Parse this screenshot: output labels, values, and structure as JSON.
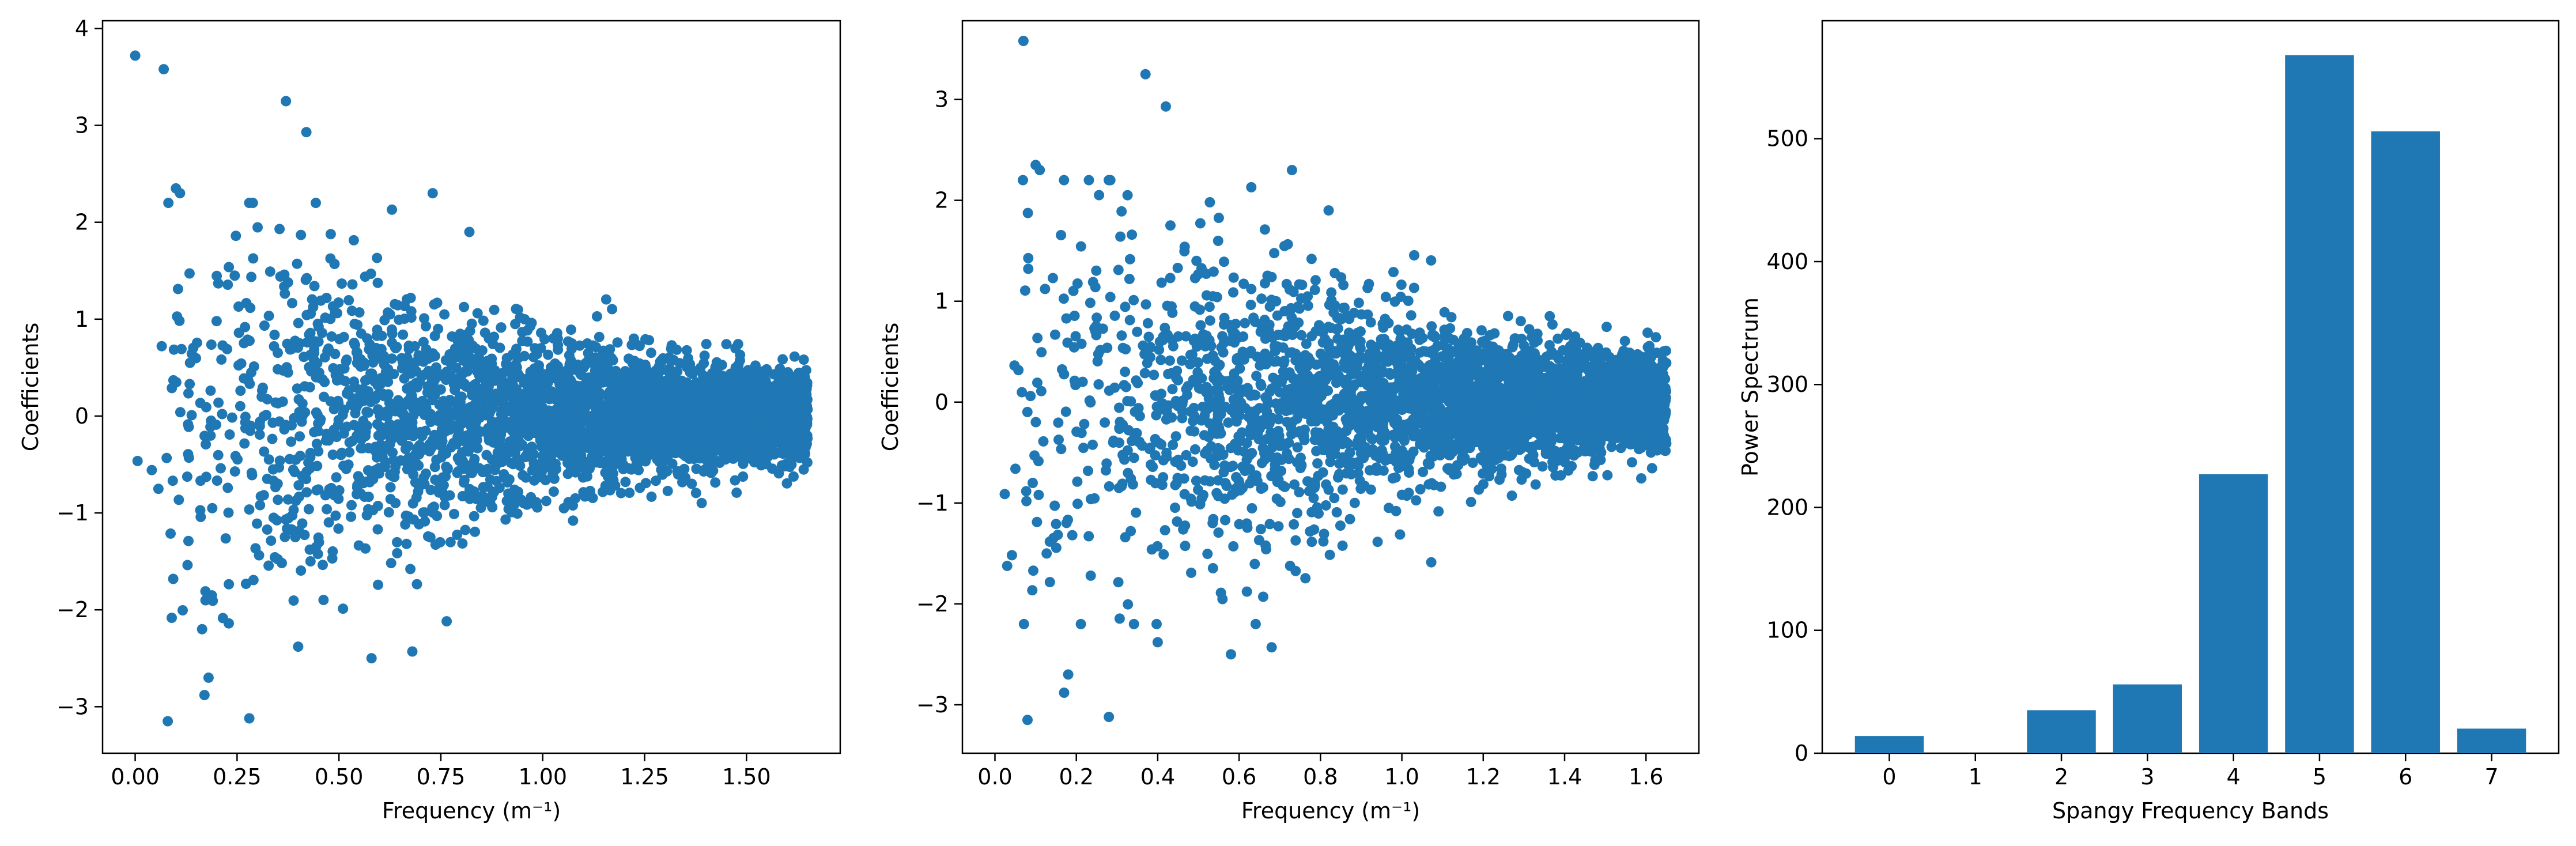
{
  "chart_data": [
    {
      "type": "scatter",
      "title": "",
      "xlabel": "Frequency (m⁻¹)",
      "ylabel": "Coefficients",
      "xlim": [
        -0.08,
        1.73
      ],
      "ylim": [
        -3.48,
        4.08
      ],
      "xticks": [
        0.0,
        0.25,
        0.5,
        0.75,
        1.0,
        1.25,
        1.5
      ],
      "xtick_labels": [
        "0.00",
        "0.25",
        "0.50",
        "0.75",
        "1.00",
        "1.25",
        "1.50"
      ],
      "yticks": [
        -3,
        -2,
        -1,
        0,
        1,
        2,
        3,
        4
      ],
      "ytick_labels": [
        "−3",
        "−2",
        "−1",
        "0",
        "1",
        "2",
        "3",
        "4"
      ],
      "grid": false,
      "color": "#1f77b4",
      "x_max": 1.65,
      "notable_points": [
        {
          "x": 0.0,
          "y": 3.72
        },
        {
          "x": 0.07,
          "y": 3.58
        },
        {
          "x": 0.37,
          "y": 3.25
        },
        {
          "x": 0.42,
          "y": 2.93
        },
        {
          "x": 0.1,
          "y": 2.35
        },
        {
          "x": 0.11,
          "y": 2.3
        },
        {
          "x": 0.08,
          "y": -3.15
        },
        {
          "x": 0.28,
          "y": -3.12
        },
        {
          "x": 0.18,
          "y": -2.7
        },
        {
          "x": 0.17,
          "y": -2.88
        },
        {
          "x": 0.58,
          "y": -2.5
        },
        {
          "x": 0.68,
          "y": -2.43
        },
        {
          "x": 0.4,
          "y": -2.38
        },
        {
          "x": 0.82,
          "y": 1.9
        },
        {
          "x": 0.73,
          "y": 2.3
        },
        {
          "x": 0.63,
          "y": 2.13
        }
      ]
    },
    {
      "type": "scatter",
      "title": "",
      "xlabel": "Frequency (m⁻¹)",
      "ylabel": "Coefficients",
      "xlim": [
        -0.08,
        1.73
      ],
      "ylim": [
        -3.48,
        3.78
      ],
      "xticks": [
        0.0,
        0.2,
        0.4,
        0.6,
        0.8,
        1.0,
        1.2,
        1.4,
        1.6
      ],
      "xtick_labels": [
        "0.0",
        "0.2",
        "0.4",
        "0.6",
        "0.8",
        "1.0",
        "1.2",
        "1.4",
        "1.6"
      ],
      "yticks": [
        -3,
        -2,
        -1,
        0,
        1,
        2,
        3
      ],
      "ytick_labels": [
        "−3",
        "−2",
        "−1",
        "0",
        "1",
        "2",
        "3"
      ],
      "grid": false,
      "color": "#1f77b4",
      "x_max": 1.65,
      "notable_points": [
        {
          "x": 0.07,
          "y": 3.58
        },
        {
          "x": 0.37,
          "y": 3.25
        },
        {
          "x": 0.42,
          "y": 2.93
        },
        {
          "x": 0.1,
          "y": 2.35
        },
        {
          "x": 0.11,
          "y": 2.3
        },
        {
          "x": 0.08,
          "y": -3.15
        },
        {
          "x": 0.28,
          "y": -3.12
        },
        {
          "x": 0.18,
          "y": -2.7
        },
        {
          "x": 0.17,
          "y": -2.88
        },
        {
          "x": 0.58,
          "y": -2.5
        },
        {
          "x": 0.68,
          "y": -2.43
        },
        {
          "x": 0.4,
          "y": -2.38
        },
        {
          "x": 0.82,
          "y": 1.9
        },
        {
          "x": 0.73,
          "y": 2.3
        },
        {
          "x": 0.63,
          "y": 2.13
        }
      ]
    },
    {
      "type": "bar",
      "title": "",
      "xlabel": "Spangy Frequency Bands",
      "ylabel": "Power Spectrum",
      "categories": [
        "0",
        "1",
        "2",
        "3",
        "4",
        "5",
        "6",
        "7"
      ],
      "values": [
        14,
        0,
        35,
        56,
        227,
        568,
        506,
        20
      ],
      "xlim": [
        -0.78,
        7.78
      ],
      "ylim": [
        0,
        596
      ],
      "yticks": [
        0,
        100,
        200,
        300,
        400,
        500
      ],
      "ytick_labels": [
        "0",
        "100",
        "200",
        "300",
        "400",
        "500"
      ],
      "grid": false,
      "color": "#1f77b4"
    }
  ]
}
